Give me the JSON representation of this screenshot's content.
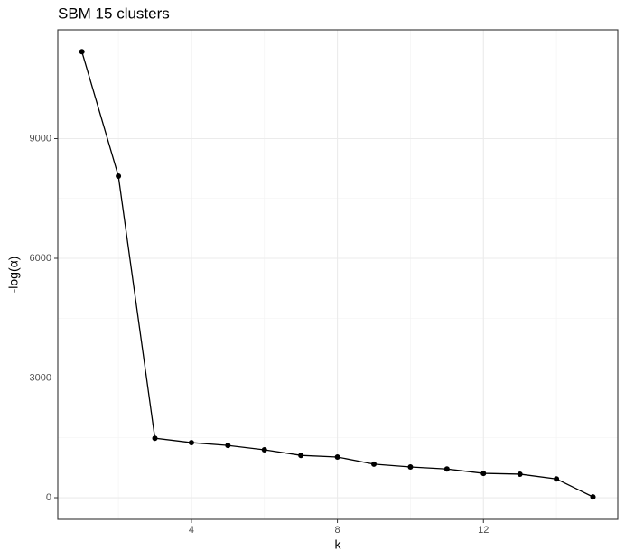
{
  "chart_data": {
    "type": "line",
    "title": "SBM 15 clusters",
    "x_label": "k",
    "y_label": "-log(α)",
    "x": [
      1,
      2,
      3,
      4,
      5,
      6,
      7,
      8,
      9,
      10,
      11,
      12,
      13,
      14,
      15
    ],
    "series": [
      {
        "name": "-log(α)",
        "color": "#000000",
        "values": [
          11180,
          8060,
          1490,
          1380,
          1310,
          1200,
          1060,
          1020,
          840,
          770,
          720,
          610,
          590,
          470,
          20
        ]
      }
    ],
    "xlim": [
      0.34,
      15.68
    ],
    "xticks": [
      4,
      8,
      12
    ],
    "ylim": [
      -543,
      11728
    ],
    "yticks": [
      0,
      3000,
      6000,
      9000
    ],
    "grid": true
  }
}
